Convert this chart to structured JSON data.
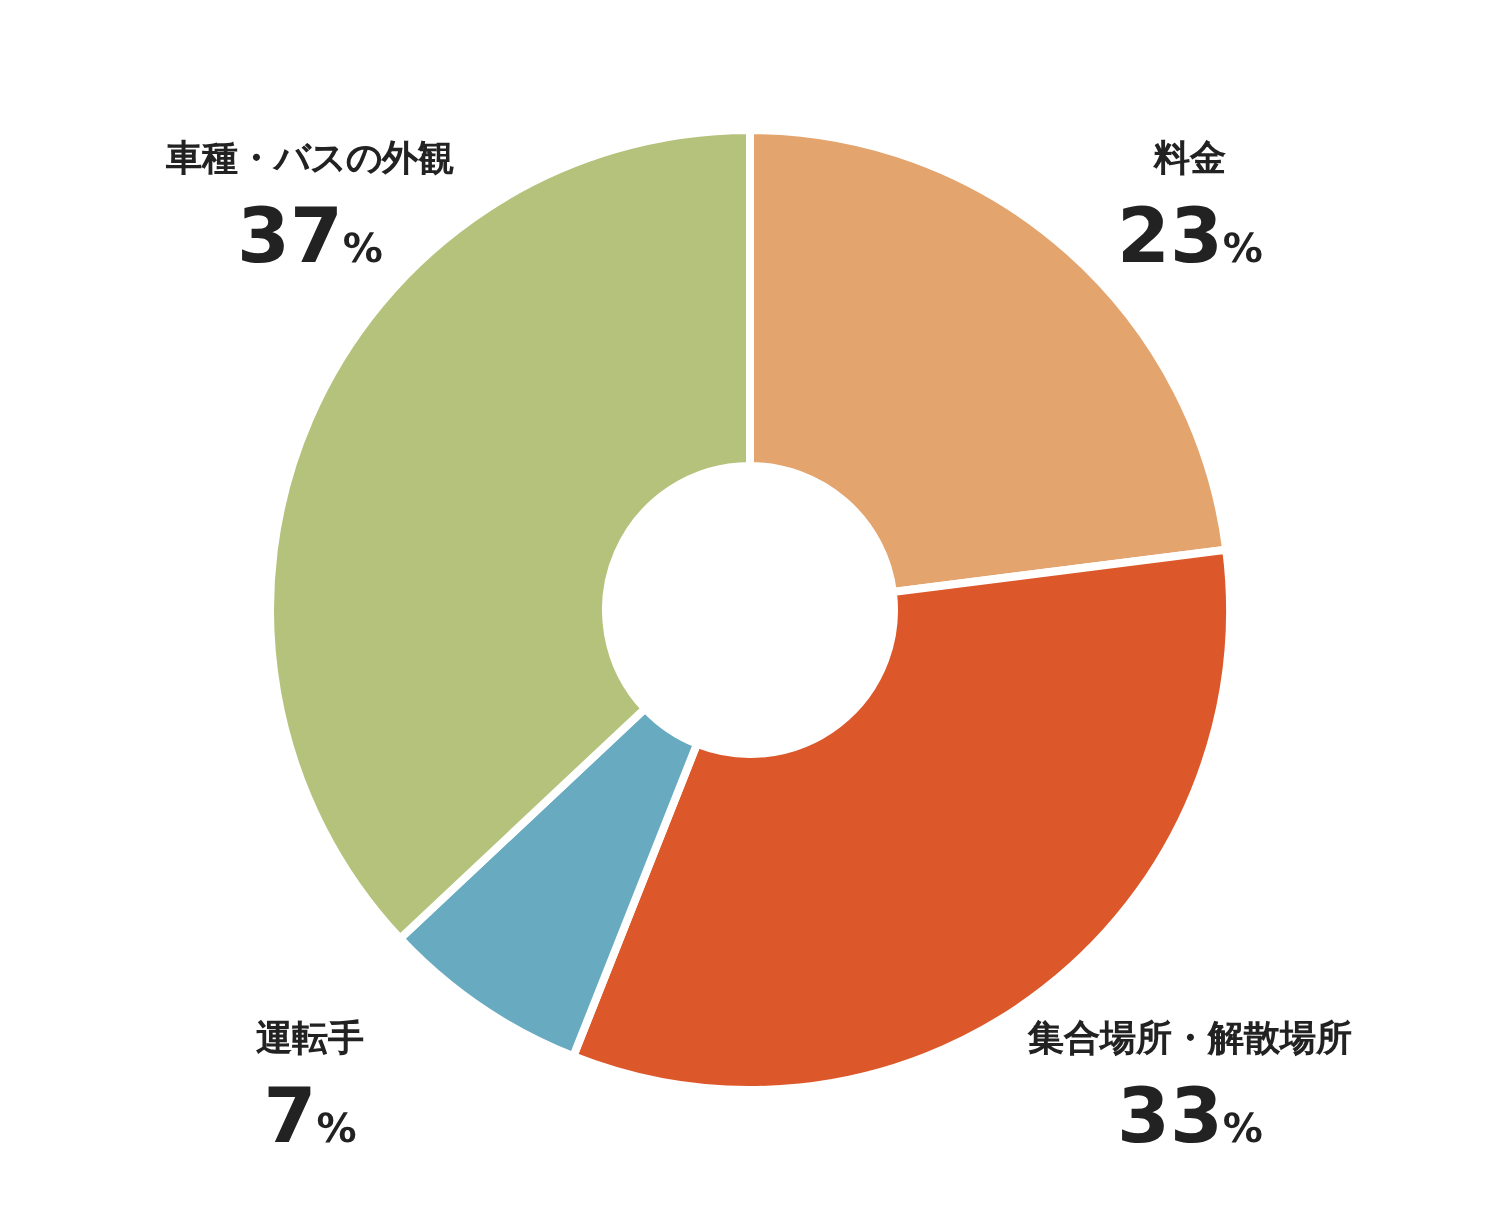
{
  "chart_data": {
    "type": "donut",
    "categories": [
      "料金",
      "集合場所・解散場所",
      "運転手",
      "車種・バスの外観"
    ],
    "values": [
      23,
      33,
      7,
      37
    ],
    "colors": [
      "#e4a46e",
      "#dc582a",
      "#68abc0",
      "#b5c27c"
    ],
    "value_labels": [
      "23%",
      "33%",
      "7%",
      "37%"
    ]
  }
}
